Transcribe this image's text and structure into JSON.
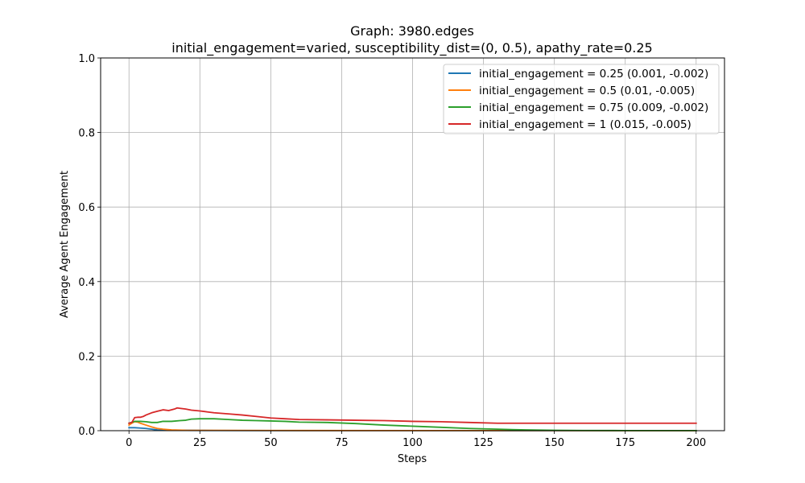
{
  "chart_data": {
    "type": "line",
    "title": "Graph: 3980.edges",
    "subtitle": "initial_engagement=varied, susceptibility_dist=(0, 0.5), apathy_rate=0.25",
    "xlabel": "Steps",
    "ylabel": "Average Agent Engagement",
    "xlim": [
      -10,
      210
    ],
    "ylim": [
      0,
      1.0
    ],
    "xticks": [
      0,
      25,
      50,
      75,
      100,
      125,
      150,
      175,
      200
    ],
    "yticks": [
      0.0,
      0.2,
      0.4,
      0.6,
      0.8,
      1.0
    ],
    "ytick_labels": [
      "0.0",
      "0.2",
      "0.4",
      "0.6",
      "0.8",
      "1.0"
    ],
    "grid": true,
    "legend_position": "top-right",
    "series": [
      {
        "name": "initial_engagement = 0.25 (0.001, -0.002)",
        "color": "#1f77b4",
        "x": [
          0,
          2,
          4,
          6,
          8,
          10,
          15,
          20,
          30,
          50,
          100,
          150,
          200
        ],
        "y": [
          0.008,
          0.008,
          0.007,
          0.006,
          0.004,
          0.002,
          0.001,
          0.001,
          0.0005,
          0.0003,
          0.0002,
          0.0001,
          0.0001
        ]
      },
      {
        "name": "initial_engagement = 0.5 (0.01, -0.005)",
        "color": "#ff7f0e",
        "x": [
          0,
          1,
          2,
          3,
          4,
          6,
          8,
          10,
          12,
          15,
          20,
          30,
          50,
          100,
          150,
          200
        ],
        "y": [
          0.015,
          0.02,
          0.024,
          0.023,
          0.02,
          0.015,
          0.01,
          0.006,
          0.004,
          0.002,
          0.001,
          0.0008,
          0.0005,
          0.0003,
          0.0002,
          0.0001
        ]
      },
      {
        "name": "initial_engagement = 0.75 (0.009, -0.002)",
        "color": "#2ca02c",
        "x": [
          0,
          2,
          4,
          6,
          8,
          10,
          12,
          15,
          18,
          20,
          22,
          25,
          30,
          35,
          40,
          45,
          50,
          55,
          60,
          70,
          80,
          90,
          100,
          110,
          120,
          130,
          140,
          150,
          160,
          175,
          200
        ],
        "y": [
          0.02,
          0.025,
          0.025,
          0.024,
          0.022,
          0.022,
          0.025,
          0.025,
          0.027,
          0.028,
          0.031,
          0.032,
          0.032,
          0.03,
          0.028,
          0.027,
          0.026,
          0.025,
          0.023,
          0.022,
          0.019,
          0.015,
          0.012,
          0.009,
          0.006,
          0.004,
          0.002,
          0.001,
          0.0005,
          0.0003,
          0.0002
        ]
      },
      {
        "name": "initial_engagement = 1 (0.015, -0.005)",
        "color": "#d62728",
        "x": [
          0,
          1,
          2,
          3,
          4,
          5,
          6,
          8,
          10,
          12,
          14,
          16,
          17,
          18,
          20,
          22,
          25,
          28,
          30,
          35,
          40,
          45,
          50,
          55,
          60,
          70,
          80,
          90,
          100,
          110,
          120,
          130,
          140,
          150,
          175,
          200
        ],
        "y": [
          0.02,
          0.022,
          0.035,
          0.036,
          0.036,
          0.038,
          0.042,
          0.048,
          0.052,
          0.056,
          0.054,
          0.058,
          0.061,
          0.06,
          0.058,
          0.055,
          0.053,
          0.05,
          0.048,
          0.045,
          0.042,
          0.038,
          0.034,
          0.032,
          0.03,
          0.029,
          0.028,
          0.027,
          0.025,
          0.024,
          0.022,
          0.02,
          0.02,
          0.02,
          0.02,
          0.02
        ]
      }
    ]
  }
}
